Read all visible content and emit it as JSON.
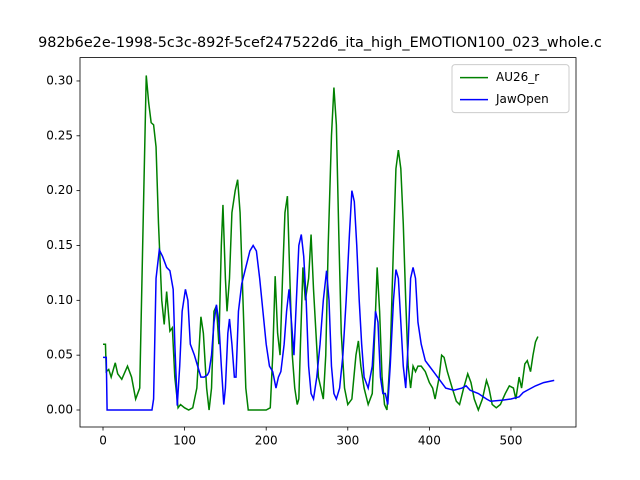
{
  "chart_data": {
    "type": "line",
    "title": "982b6e2e-1998-5c3c-892f-5cef247522d6_ita_high_EMOTION100_023_whole.c",
    "xlim": [
      -28.2,
      579.7
    ],
    "ylim": [
      -0.0155,
      0.3213
    ],
    "xticks": [
      0,
      100,
      200,
      300,
      400,
      500
    ],
    "yticks": [
      {
        "value": 0,
        "label": "0.00"
      },
      {
        "value": 0.05,
        "label": "0.05"
      },
      {
        "value": 0.1,
        "label": "0.10"
      },
      {
        "value": 0.15,
        "label": "0.15"
      },
      {
        "value": 0.2,
        "label": "0.20"
      },
      {
        "value": 0.25,
        "label": "0.25"
      },
      {
        "value": 0.3,
        "label": "0.30"
      }
    ],
    "grid": false,
    "legend": "upper right",
    "series": [
      {
        "name": "AU26_r",
        "color": "#008000",
        "x": [
          0,
          3,
          4,
          7,
          10,
          15,
          18,
          23,
          30,
          35,
          40,
          45,
          50,
          53,
          56,
          59,
          62,
          65,
          68,
          72,
          75,
          78,
          82,
          85,
          88,
          92,
          95,
          100,
          105,
          110,
          115,
          120,
          123,
          127,
          130,
          133,
          136,
          139,
          142,
          145,
          147,
          150,
          152,
          155,
          158,
          162,
          165,
          168,
          172,
          175,
          178,
          185,
          200,
          205,
          208,
          211,
          214,
          217,
          220,
          223,
          226,
          229,
          232,
          235,
          238,
          240,
          242,
          245,
          248,
          252,
          255,
          258,
          261,
          264,
          267,
          270,
          273,
          276,
          280,
          283,
          286,
          289,
          292,
          296,
          300,
          305,
          310,
          313,
          316,
          320,
          325,
          330,
          333,
          336,
          339,
          342,
          345,
          348,
          352,
          356,
          359,
          362,
          365,
          368,
          371,
          374,
          377,
          380,
          383,
          386,
          390,
          395,
          400,
          404,
          407,
          412,
          415,
          418,
          422,
          428,
          433,
          437,
          442,
          447,
          451,
          455,
          460,
          465,
          470,
          473,
          477,
          482,
          487,
          493,
          498,
          503,
          506,
          510,
          513,
          517,
          520,
          524,
          527,
          530,
          533
        ],
        "values": [
          0.06,
          0.06,
          0.035,
          0.037,
          0.03,
          0.043,
          0.033,
          0.028,
          0.04,
          0.03,
          0.01,
          0.02,
          0.2,
          0.305,
          0.28,
          0.262,
          0.26,
          0.24,
          0.17,
          0.1,
          0.078,
          0.108,
          0.072,
          0.075,
          0.03,
          0.002,
          0.005,
          0.002,
          0.0,
          0.002,
          0.02,
          0.085,
          0.07,
          0.02,
          0.0,
          0.02,
          0.09,
          0.095,
          0.06,
          0.15,
          0.187,
          0.12,
          0.09,
          0.12,
          0.18,
          0.2,
          0.21,
          0.18,
          0.09,
          0.02,
          0.0,
          0.0,
          0.0,
          0.002,
          0.05,
          0.122,
          0.07,
          0.05,
          0.12,
          0.18,
          0.195,
          0.12,
          0.05,
          0.02,
          0.005,
          0.01,
          0.06,
          0.13,
          0.1,
          0.12,
          0.16,
          0.11,
          0.07,
          0.03,
          0.02,
          0.01,
          0.05,
          0.15,
          0.25,
          0.294,
          0.26,
          0.16,
          0.07,
          0.02,
          0.005,
          0.01,
          0.05,
          0.063,
          0.04,
          0.02,
          0.005,
          0.015,
          0.07,
          0.13,
          0.09,
          0.03,
          0.005,
          0.0,
          0.05,
          0.15,
          0.22,
          0.237,
          0.22,
          0.17,
          0.1,
          0.04,
          0.02,
          0.04,
          0.035,
          0.04,
          0.04,
          0.035,
          0.025,
          0.02,
          0.01,
          0.03,
          0.05,
          0.048,
          0.035,
          0.02,
          0.008,
          0.005,
          0.02,
          0.033,
          0.025,
          0.01,
          0.0,
          0.01,
          0.027,
          0.02,
          0.005,
          0.002,
          0.005,
          0.015,
          0.022,
          0.02,
          0.01,
          0.03,
          0.02,
          0.042,
          0.045,
          0.035,
          0.05,
          0.062,
          0.067
        ]
      },
      {
        "name": "JawOpen",
        "color": "#0000ff",
        "x": [
          0,
          4,
          5,
          60,
          62,
          65,
          69,
          73,
          78,
          82,
          86,
          88,
          91,
          94,
          97,
          101,
          104,
          107,
          112,
          116,
          120,
          124,
          128,
          130,
          133,
          136,
          139,
          142,
          145,
          148,
          150,
          153,
          155,
          158,
          161,
          163,
          166,
          170,
          175,
          180,
          184,
          188,
          192,
          196,
          200,
          204,
          208,
          212,
          215,
          218,
          222,
          225,
          228,
          231,
          234,
          237,
          240,
          243,
          246,
          249,
          252,
          255,
          258,
          262,
          266,
          270,
          274,
          277,
          280,
          283,
          286,
          290,
          294,
          298,
          302,
          305,
          308,
          311,
          314,
          317,
          320,
          325,
          330,
          334,
          337,
          340,
          343,
          346,
          349,
          352,
          356,
          359,
          362,
          365,
          368,
          371,
          374,
          377,
          380,
          383,
          386,
          390,
          395,
          400,
          405,
          410,
          420,
          430,
          440,
          445,
          450,
          460,
          470,
          475,
          490,
          500,
          510,
          515,
          520,
          530,
          540,
          553
        ],
        "values": [
          0.048,
          0.048,
          0.0,
          0.0,
          0.01,
          0.12,
          0.146,
          0.14,
          0.13,
          0.127,
          0.11,
          0.06,
          0.004,
          0.04,
          0.09,
          0.11,
          0.1,
          0.06,
          0.05,
          0.04,
          0.03,
          0.03,
          0.032,
          0.035,
          0.05,
          0.08,
          0.096,
          0.08,
          0.04,
          0.005,
          0.02,
          0.07,
          0.083,
          0.06,
          0.03,
          0.03,
          0.09,
          0.115,
          0.13,
          0.145,
          0.15,
          0.145,
          0.12,
          0.09,
          0.06,
          0.04,
          0.035,
          0.02,
          0.03,
          0.035,
          0.06,
          0.09,
          0.11,
          0.08,
          0.05,
          0.1,
          0.15,
          0.16,
          0.14,
          0.1,
          0.04,
          0.015,
          0.01,
          0.03,
          0.06,
          0.1,
          0.127,
          0.1,
          0.04,
          0.015,
          0.01,
          0.02,
          0.05,
          0.1,
          0.16,
          0.2,
          0.19,
          0.15,
          0.1,
          0.06,
          0.03,
          0.02,
          0.04,
          0.09,
          0.08,
          0.03,
          0.015,
          0.015,
          0.005,
          0.04,
          0.1,
          0.128,
          0.12,
          0.08,
          0.04,
          0.02,
          0.06,
          0.12,
          0.13,
          0.12,
          0.08,
          0.06,
          0.045,
          0.04,
          0.035,
          0.03,
          0.02,
          0.018,
          0.02,
          0.022,
          0.018,
          0.015,
          0.01,
          0.008,
          0.009,
          0.01,
          0.012,
          0.016,
          0.018,
          0.022,
          0.025,
          0.027
        ]
      }
    ]
  }
}
